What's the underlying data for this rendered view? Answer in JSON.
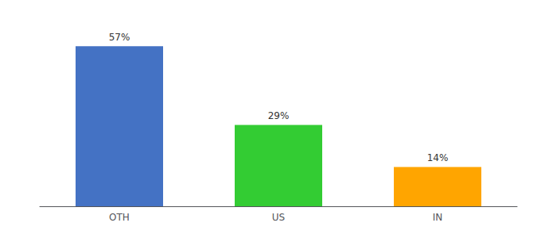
{
  "chart_data": {
    "type": "bar",
    "categories": [
      "OTH",
      "US",
      "IN"
    ],
    "values": [
      57,
      29,
      14
    ],
    "value_labels": [
      "57%",
      "29%",
      "14%"
    ],
    "colors": [
      "#4472C4",
      "#33CC33",
      "#FFA500"
    ],
    "ylim": [
      0,
      65
    ],
    "data_labels": true,
    "tick_labels": "x",
    "grid": false
  }
}
